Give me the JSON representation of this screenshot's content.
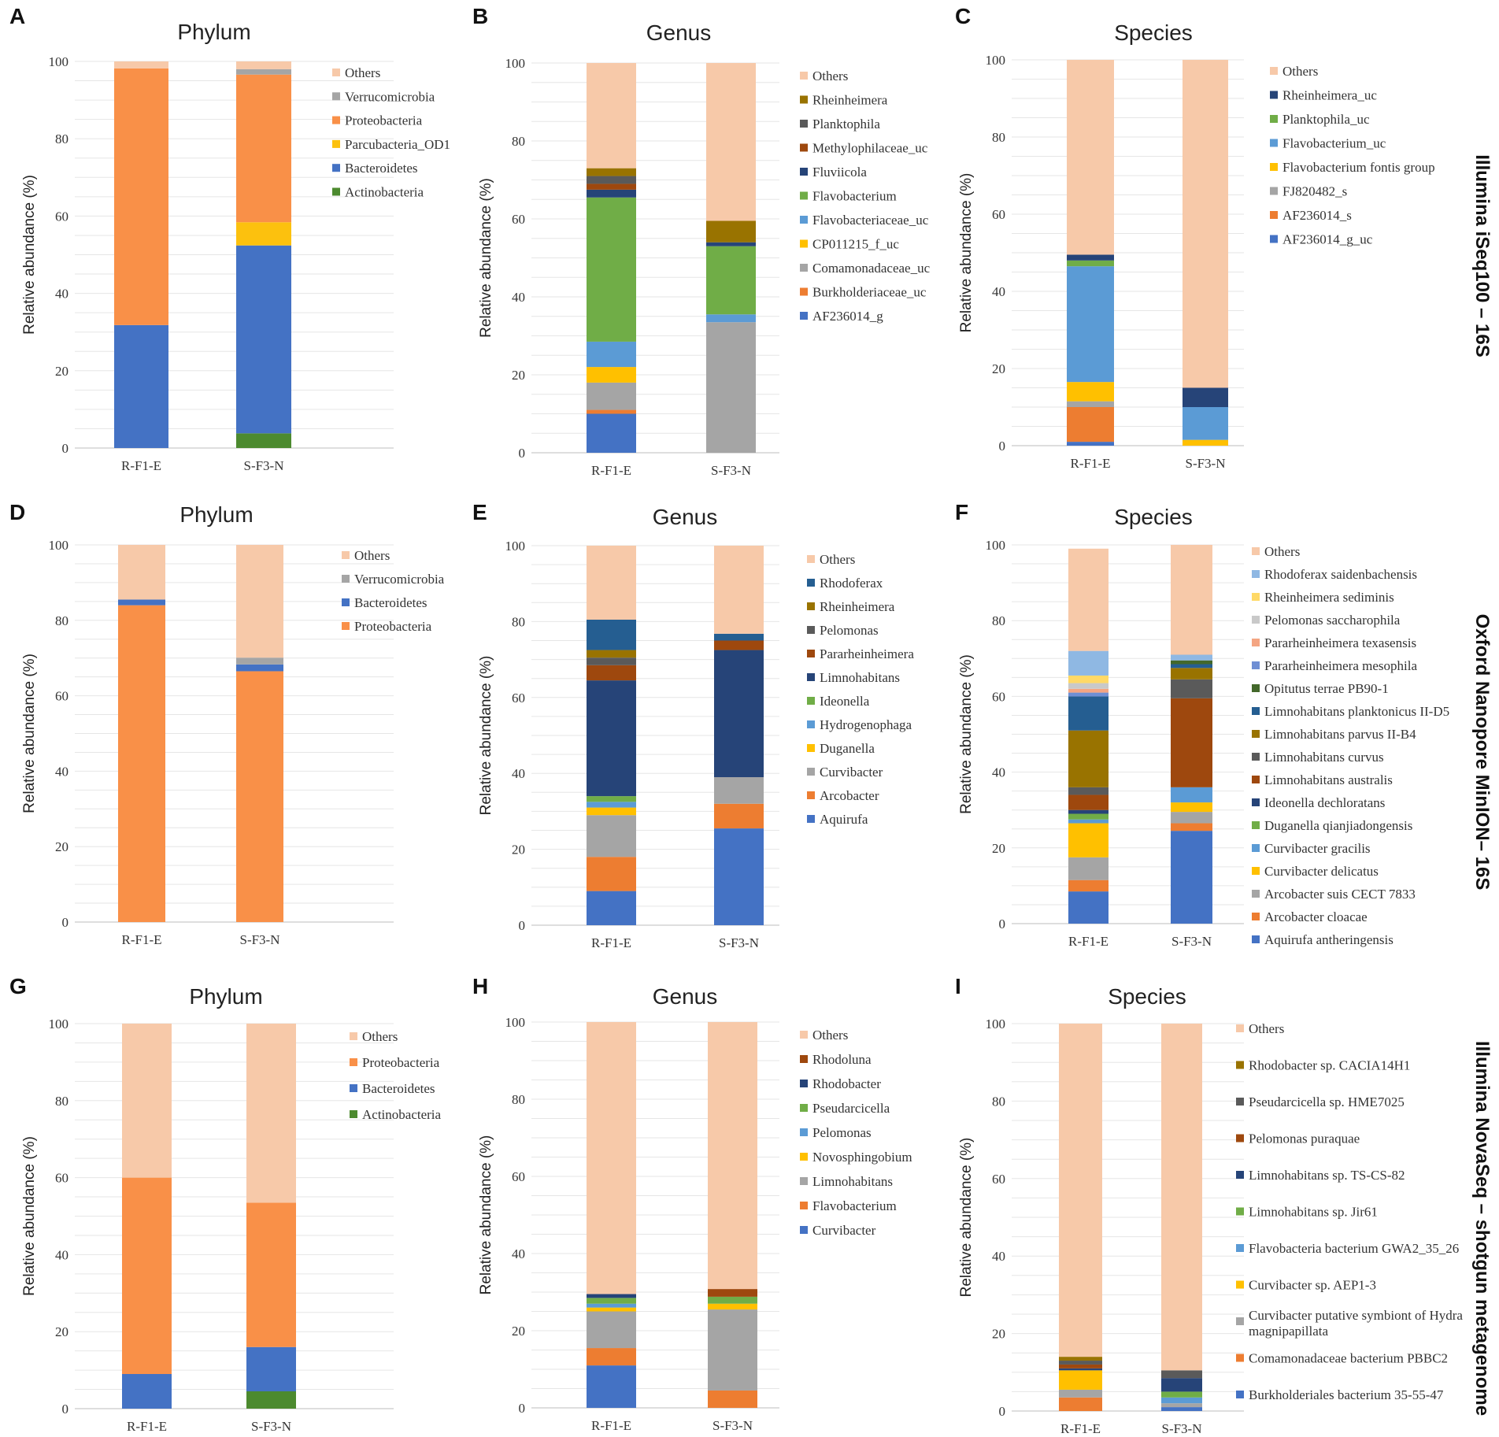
{
  "colors": {
    "Others": "#f7c9a9",
    "Verrucomicrobia": "#a5a5a5",
    "Proteobacteria": "#f99048",
    "Parcubacteria_OD1": "#fcc10e",
    "Bacteroidetes": "#4472c4",
    "Actinobacteria": "#4c8a2f",
    "c_brown": "#997300",
    "c_darkgray": "#5a5a5a",
    "c_rust": "#9e480e",
    "c_navy": "#264478",
    "c_green": "#70ad47",
    "c_lightblue": "#5b9bd5",
    "c_yellow": "#ffc000",
    "c_gray": "#a5a5a5",
    "c_orange": "#ed7d31",
    "c_blue": "#4472c4",
    "c_teal": "#255e91",
    "c_darkgreen": "#43682b",
    "c_salmon": "#f4a582",
    "c_periwinkle": "#6f8fd4",
    "c_lightblue2": "#8fb8e3",
    "c_yellow2": "#ffd966"
  },
  "row_labels": [
    "Illumina iSeq100 – 16S",
    "Oxford Nanopore MinION– 16S",
    "Illumina NovaSeq – shotgun metagenome"
  ],
  "chart_data": [
    {
      "panel": "A",
      "type": "bar",
      "stacked": true,
      "title": "Phylum",
      "ylabel": "Relative abundance (%)",
      "ylim": [
        0,
        100
      ],
      "yticks": [
        0,
        20,
        40,
        60,
        80,
        100
      ],
      "categories": [
        "R-F1-E",
        "S-F3-N"
      ],
      "series": [
        {
          "name": "Actinobacteria",
          "color": "#4c8a2f",
          "values": [
            0,
            3.8
          ]
        },
        {
          "name": "Bacteroidetes",
          "color": "#4472c4",
          "values": [
            31.8,
            48.6
          ]
        },
        {
          "name": "Parcubacteria_OD1",
          "color": "#fcc10e",
          "values": [
            0,
            6.0
          ]
        },
        {
          "name": "Proteobacteria",
          "color": "#f99048",
          "values": [
            66.4,
            38.2
          ]
        },
        {
          "name": "Verrucomicrobia",
          "color": "#a5a5a5",
          "values": [
            0,
            1.4
          ]
        },
        {
          "name": "Others",
          "color": "#f7c9a9",
          "values": [
            1.8,
            2.0
          ]
        }
      ]
    },
    {
      "panel": "B",
      "type": "bar",
      "stacked": true,
      "title": "Genus",
      "ylabel": "Relative abundance (%)",
      "ylim": [
        0,
        100
      ],
      "yticks": [
        0,
        20,
        40,
        60,
        80,
        100
      ],
      "categories": [
        "R-F1-E",
        "S-F3-N"
      ],
      "series": [
        {
          "name": "AF236014_g",
          "color": "#4472c4",
          "values": [
            10.0,
            0
          ]
        },
        {
          "name": "Burkholderiaceae_uc",
          "color": "#ed7d31",
          "values": [
            1.0,
            0
          ]
        },
        {
          "name": "Comamonadaceae_uc",
          "color": "#a5a5a5",
          "values": [
            7.0,
            33.5
          ]
        },
        {
          "name": "CP011215_f_uc",
          "color": "#ffc000",
          "values": [
            4.0,
            0
          ]
        },
        {
          "name": "Flavobacteriaceae_uc",
          "color": "#5b9bd5",
          "values": [
            6.5,
            2.0
          ]
        },
        {
          "name": "Flavobacterium",
          "color": "#70ad47",
          "values": [
            37.0,
            17.5
          ]
        },
        {
          "name": "Fluviicola",
          "color": "#264478",
          "values": [
            2.0,
            1.0
          ]
        },
        {
          "name": "Methylophilaceae_uc",
          "color": "#9e480e",
          "values": [
            1.5,
            0
          ]
        },
        {
          "name": "Planktophila",
          "color": "#5a5a5a",
          "values": [
            2.0,
            0
          ]
        },
        {
          "name": "Rheinheimera",
          "color": "#997300",
          "values": [
            2.0,
            5.5
          ]
        },
        {
          "name": "Others",
          "color": "#f7c9a9",
          "values": [
            27.0,
            40.5
          ]
        }
      ]
    },
    {
      "panel": "C",
      "type": "bar",
      "stacked": true,
      "title": "Species",
      "ylabel": "Relative abundance (%)",
      "ylim": [
        0,
        100
      ],
      "yticks": [
        0,
        20,
        40,
        60,
        80,
        100
      ],
      "categories": [
        "R-F1-E",
        "S-F3-N"
      ],
      "series": [
        {
          "name": "AF236014_g_uc",
          "color": "#4472c4",
          "values": [
            1.0,
            0
          ]
        },
        {
          "name": "AF236014_s",
          "color": "#ed7d31",
          "values": [
            9.0,
            0
          ]
        },
        {
          "name": "FJ820482_s",
          "color": "#a5a5a5",
          "values": [
            1.5,
            0
          ]
        },
        {
          "name": "Flavobacterium fontis group",
          "color": "#ffc000",
          "values": [
            5.0,
            1.5
          ]
        },
        {
          "name": "Flavobacterium_uc",
          "color": "#5b9bd5",
          "values": [
            30.0,
            8.5
          ]
        },
        {
          "name": "Planktophila_uc",
          "color": "#70ad47",
          "values": [
            1.5,
            0
          ]
        },
        {
          "name": "Rheinheimera_uc",
          "color": "#264478",
          "values": [
            1.5,
            5.0
          ]
        },
        {
          "name": "Others",
          "color": "#f7c9a9",
          "values": [
            50.5,
            85.0
          ]
        }
      ]
    },
    {
      "panel": "D",
      "type": "bar",
      "stacked": true,
      "title": "Phylum",
      "ylabel": "Relative abundance (%)",
      "ylim": [
        0,
        100
      ],
      "yticks": [
        0,
        20,
        40,
        60,
        80,
        100
      ],
      "categories": [
        "R-F1-E",
        "S-F3-N"
      ],
      "series": [
        {
          "name": "Proteobacteria",
          "color": "#f99048",
          "values": [
            84.0,
            66.5
          ]
        },
        {
          "name": "Bacteroidetes",
          "color": "#4472c4",
          "values": [
            1.5,
            1.8
          ]
        },
        {
          "name": "Verrucomicrobia",
          "color": "#a5a5a5",
          "values": [
            0,
            1.8
          ]
        },
        {
          "name": "Others",
          "color": "#f7c9a9",
          "values": [
            14.5,
            29.9
          ]
        }
      ]
    },
    {
      "panel": "E",
      "type": "bar",
      "stacked": true,
      "title": "Genus",
      "ylabel": "Relative abundance (%)",
      "ylim": [
        0,
        100
      ],
      "yticks": [
        0,
        20,
        40,
        60,
        80,
        100
      ],
      "categories": [
        "R-F1-E",
        "S-F3-N"
      ],
      "series": [
        {
          "name": "Aquirufa",
          "color": "#4472c4",
          "values": [
            9.0,
            25.5
          ]
        },
        {
          "name": "Arcobacter",
          "color": "#ed7d31",
          "values": [
            9.0,
            6.5
          ]
        },
        {
          "name": "Curvibacter",
          "color": "#a5a5a5",
          "values": [
            11.0,
            7.0
          ]
        },
        {
          "name": "Duganella",
          "color": "#ffc000",
          "values": [
            2.0,
            0
          ]
        },
        {
          "name": "Hydrogenophaga",
          "color": "#5b9bd5",
          "values": [
            1.5,
            0
          ]
        },
        {
          "name": "Ideonella",
          "color": "#70ad47",
          "values": [
            1.5,
            0
          ]
        },
        {
          "name": "Limnohabitans",
          "color": "#264478",
          "values": [
            30.5,
            33.5
          ]
        },
        {
          "name": "Pararheinheimera",
          "color": "#9e480e",
          "values": [
            4.0,
            2.5
          ]
        },
        {
          "name": "Pelomonas",
          "color": "#5a5a5a",
          "values": [
            2.0,
            0
          ]
        },
        {
          "name": "Rheinheimera",
          "color": "#997300",
          "values": [
            2.0,
            0
          ]
        },
        {
          "name": "Rhodoferax",
          "color": "#255e91",
          "values": [
            8.0,
            1.8
          ]
        },
        {
          "name": "Others",
          "color": "#f7c9a9",
          "values": [
            19.5,
            23.2
          ]
        }
      ]
    },
    {
      "panel": "F",
      "type": "bar",
      "stacked": true,
      "title": "Species",
      "ylabel": "Relative abundance (%)",
      "ylim": [
        0,
        100
      ],
      "yticks": [
        0,
        20,
        40,
        60,
        80,
        100
      ],
      "categories": [
        "R-F1-E",
        "S-F3-N"
      ],
      "series": [
        {
          "name": "Aquirufa antheringensis",
          "color": "#4472c4",
          "values": [
            8.5,
            24.5
          ]
        },
        {
          "name": "Arcobacter cloacae",
          "color": "#ed7d31",
          "values": [
            3.0,
            2.0
          ]
        },
        {
          "name": "Arcobacter suis CECT 7833",
          "color": "#a5a5a5",
          "values": [
            6.0,
            3.0
          ]
        },
        {
          "name": "Curvibacter delicatus",
          "color": "#ffc000",
          "values": [
            9.0,
            2.5
          ]
        },
        {
          "name": "Curvibacter gracilis",
          "color": "#5b9bd5",
          "values": [
            1.0,
            4.0
          ]
        },
        {
          "name": "Duganella qianjiadongensis",
          "color": "#70ad47",
          "values": [
            1.5,
            0
          ]
        },
        {
          "name": "Ideonella dechloratans",
          "color": "#264478",
          "values": [
            1.0,
            0
          ]
        },
        {
          "name": "Limnohabitans australis",
          "color": "#9e480e",
          "values": [
            4.0,
            23.5
          ]
        },
        {
          "name": "Limnohabitans curvus",
          "color": "#5a5a5a",
          "values": [
            2.0,
            5.0
          ]
        },
        {
          "name": "Limnohabitans parvus II-B4",
          "color": "#997300",
          "values": [
            15.0,
            3.0
          ]
        },
        {
          "name": "Limnohabitans planktonicus II-D5",
          "color": "#255e91",
          "values": [
            9.0,
            1.0
          ]
        },
        {
          "name": "Opitutus terrae PB90-1",
          "color": "#43682b",
          "values": [
            0,
            1.0
          ]
        },
        {
          "name": "Pararheinheimera mesophila",
          "color": "#6f8fd4",
          "values": [
            1.0,
            0
          ]
        },
        {
          "name": "Pararheinheimera texasensis",
          "color": "#f4a582",
          "values": [
            1.0,
            0
          ]
        },
        {
          "name": "Pelomonas saccharophila",
          "color": "#c9c9c9",
          "values": [
            1.5,
            0
          ]
        },
        {
          "name": "Rheinheimera sediminis",
          "color": "#ffd966",
          "values": [
            2.0,
            0
          ]
        },
        {
          "name": "Rhodoferax saidenbachensis",
          "color": "#8fb8e3",
          "values": [
            6.5,
            1.5
          ]
        },
        {
          "name": "Others",
          "color": "#f7c9a9",
          "values": [
            27.0,
            29.0
          ]
        }
      ]
    },
    {
      "panel": "G",
      "type": "bar",
      "stacked": true,
      "title": "Phylum",
      "ylabel": "Relative abundance (%)",
      "ylim": [
        0,
        100
      ],
      "yticks": [
        0,
        20,
        40,
        60,
        80,
        100
      ],
      "categories": [
        "R-F1-E",
        "S-F3-N"
      ],
      "series": [
        {
          "name": "Actinobacteria",
          "color": "#4c8a2f",
          "values": [
            0,
            4.5
          ]
        },
        {
          "name": "Bacteroidetes",
          "color": "#4472c4",
          "values": [
            9.0,
            11.5
          ]
        },
        {
          "name": "Proteobacteria",
          "color": "#f99048",
          "values": [
            51.0,
            37.5
          ]
        },
        {
          "name": "Others",
          "color": "#f7c9a9",
          "values": [
            40.0,
            46.5
          ]
        }
      ]
    },
    {
      "panel": "H",
      "type": "bar",
      "stacked": true,
      "title": "Genus",
      "ylabel": "Relative abundance (%)",
      "ylim": [
        0,
        100
      ],
      "yticks": [
        0,
        20,
        40,
        60,
        80,
        100
      ],
      "categories": [
        "R-F1-E",
        "S-F3-N"
      ],
      "series": [
        {
          "name": "Curvibacter",
          "color": "#4472c4",
          "values": [
            11.0,
            0
          ]
        },
        {
          "name": "Flavobacterium",
          "color": "#ed7d31",
          "values": [
            4.5,
            4.5
          ]
        },
        {
          "name": "Limnohabitans",
          "color": "#a5a5a5",
          "values": [
            9.5,
            21.0
          ]
        },
        {
          "name": "Novosphingobium",
          "color": "#ffc000",
          "values": [
            1.0,
            1.5
          ]
        },
        {
          "name": "Pelomonas",
          "color": "#5b9bd5",
          "values": [
            1.0,
            0
          ]
        },
        {
          "name": "Pseudarcicella",
          "color": "#70ad47",
          "values": [
            1.5,
            1.8
          ]
        },
        {
          "name": "Rhodobacter",
          "color": "#264478",
          "values": [
            1.0,
            0
          ]
        },
        {
          "name": "Rhodoluna",
          "color": "#9e480e",
          "values": [
            0,
            2.0
          ]
        },
        {
          "name": "Others",
          "color": "#f7c9a9",
          "values": [
            70.5,
            69.2
          ]
        }
      ]
    },
    {
      "panel": "I",
      "type": "bar",
      "stacked": true,
      "title": "Species",
      "ylabel": "Relative abundance (%)",
      "ylim": [
        0,
        100
      ],
      "yticks": [
        0,
        20,
        40,
        60,
        80,
        100
      ],
      "categories": [
        "R-F1-E",
        "S-F3-N"
      ],
      "series": [
        {
          "name": "Burkholderiales bacterium 35-55-47",
          "color": "#4472c4",
          "values": [
            0,
            1.0
          ]
        },
        {
          "name": "Comamonadaceae bacterium PBBC2",
          "color": "#ed7d31",
          "values": [
            3.5,
            0
          ]
        },
        {
          "name": "Curvibacter putative symbiont of Hydra magnipapillata",
          "color": "#a5a5a5",
          "values": [
            2.0,
            1.0
          ]
        },
        {
          "name": "Curvibacter sp. AEP1-3",
          "color": "#ffc000",
          "values": [
            5.0,
            0
          ]
        },
        {
          "name": "Flavobacteria bacterium GWA2_35_26",
          "color": "#5b9bd5",
          "values": [
            0,
            1.5
          ]
        },
        {
          "name": "Limnohabitans sp. Jir61",
          "color": "#70ad47",
          "values": [
            0,
            1.5
          ]
        },
        {
          "name": "Limnohabitans sp. TS-CS-82",
          "color": "#264478",
          "values": [
            0.5,
            3.5
          ]
        },
        {
          "name": "Pelomonas puraquae",
          "color": "#9e480e",
          "values": [
            1.0,
            0
          ]
        },
        {
          "name": "Pseudarcicella sp. HME7025",
          "color": "#5a5a5a",
          "values": [
            1.0,
            2.0
          ]
        },
        {
          "name": "Rhodobacter sp. CACIA14H1",
          "color": "#997300",
          "values": [
            1.0,
            0
          ]
        },
        {
          "name": "Others",
          "color": "#f7c9a9",
          "values": [
            86.0,
            89.5
          ]
        }
      ]
    }
  ]
}
